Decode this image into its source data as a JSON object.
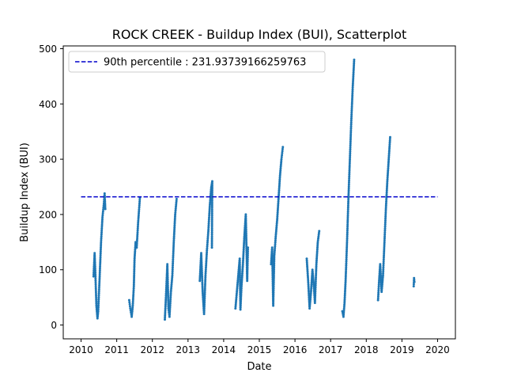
{
  "chart_data": {
    "type": "scatter",
    "title": "ROCK CREEK - Buildup Index (BUI), Scatterplot",
    "xlabel": "Date",
    "ylabel": "Buildup Index (BUI)",
    "xlim": [
      2009.5,
      2020.5
    ],
    "ylim": [
      -25,
      505
    ],
    "x_ticks": [
      "2010",
      "2011",
      "2012",
      "2013",
      "2014",
      "2015",
      "2016",
      "2017",
      "2018",
      "2019",
      "2020"
    ],
    "y_ticks": [
      0,
      100,
      200,
      300,
      400,
      500
    ],
    "grid": false,
    "legend_position": "upper left",
    "point_color": "#1f77b4",
    "reference_line": {
      "label": "90th percentile : 231.93739166259763",
      "value": 231.93739166259763,
      "x_range": [
        2010,
        2020
      ],
      "color": "#0000cc",
      "style": "dashed"
    },
    "season_segments": [
      {
        "year": 2010,
        "points": [
          [
            2010.35,
            88
          ],
          [
            2010.38,
            130
          ],
          [
            2010.4,
            95
          ],
          [
            2010.43,
            35
          ],
          [
            2010.46,
            12
          ],
          [
            2010.48,
            25
          ],
          [
            2010.52,
            85
          ],
          [
            2010.56,
            150
          ],
          [
            2010.6,
            195
          ],
          [
            2010.64,
            220
          ],
          [
            2010.66,
            238
          ],
          [
            2010.68,
            210
          ]
        ]
      },
      {
        "year": 2011,
        "points": [
          [
            2011.35,
            45
          ],
          [
            2011.38,
            30
          ],
          [
            2011.42,
            15
          ],
          [
            2011.45,
            35
          ],
          [
            2011.48,
            70
          ],
          [
            2011.5,
            120
          ],
          [
            2011.53,
            150
          ],
          [
            2011.56,
            140
          ],
          [
            2011.6,
            185
          ],
          [
            2011.65,
            230
          ]
        ]
      },
      {
        "year": 2012,
        "points": [
          [
            2012.35,
            10
          ],
          [
            2012.38,
            50
          ],
          [
            2012.42,
            110
          ],
          [
            2012.45,
            30
          ],
          [
            2012.48,
            15
          ],
          [
            2012.52,
            60
          ],
          [
            2012.56,
            90
          ],
          [
            2012.6,
            150
          ],
          [
            2012.64,
            200
          ],
          [
            2012.68,
            228
          ]
        ]
      },
      {
        "year": 2013,
        "points": [
          [
            2013.33,
            80
          ],
          [
            2013.37,
            130
          ],
          [
            2013.41,
            60
          ],
          [
            2013.45,
            20
          ],
          [
            2013.49,
            90
          ],
          [
            2013.53,
            135
          ],
          [
            2013.57,
            170
          ],
          [
            2013.61,
            215
          ],
          [
            2013.65,
            248
          ],
          [
            2013.68,
            260
          ],
          [
            2013.67,
            140
          ]
        ]
      },
      {
        "year": 2014,
        "points": [
          [
            2014.33,
            30
          ],
          [
            2014.37,
            60
          ],
          [
            2014.41,
            90
          ],
          [
            2014.45,
            120
          ],
          [
            2014.47,
            28
          ],
          [
            2014.5,
            70
          ],
          [
            2014.54,
            110
          ],
          [
            2014.58,
            160
          ],
          [
            2014.62,
            200
          ],
          [
            2014.66,
            80
          ],
          [
            2014.68,
            140
          ]
        ]
      },
      {
        "year": 2015,
        "points": [
          [
            2015.33,
            110
          ],
          [
            2015.36,
            140
          ],
          [
            2015.39,
            35
          ],
          [
            2015.42,
            125
          ],
          [
            2015.46,
            160
          ],
          [
            2015.5,
            190
          ],
          [
            2015.54,
            230
          ],
          [
            2015.58,
            270
          ],
          [
            2015.62,
            300
          ],
          [
            2015.66,
            322
          ]
        ]
      },
      {
        "year": 2016,
        "points": [
          [
            2016.33,
            120
          ],
          [
            2016.37,
            80
          ],
          [
            2016.41,
            30
          ],
          [
            2016.45,
            60
          ],
          [
            2016.49,
            100
          ],
          [
            2016.53,
            70
          ],
          [
            2016.56,
            40
          ],
          [
            2016.6,
            110
          ],
          [
            2016.64,
            150
          ],
          [
            2016.68,
            170
          ]
        ]
      },
      {
        "year": 2017,
        "points": [
          [
            2017.33,
            25
          ],
          [
            2017.36,
            15
          ],
          [
            2017.39,
            40
          ],
          [
            2017.42,
            80
          ],
          [
            2017.46,
            150
          ],
          [
            2017.5,
            230
          ],
          [
            2017.54,
            300
          ],
          [
            2017.58,
            370
          ],
          [
            2017.62,
            430
          ],
          [
            2017.66,
            480
          ]
        ]
      },
      {
        "year": 2018,
        "points": [
          [
            2018.33,
            45
          ],
          [
            2018.36,
            80
          ],
          [
            2018.39,
            110
          ],
          [
            2018.43,
            60
          ],
          [
            2018.47,
            90
          ],
          [
            2018.51,
            150
          ],
          [
            2018.55,
            210
          ],
          [
            2018.59,
            260
          ],
          [
            2018.63,
            300
          ],
          [
            2018.67,
            340
          ]
        ]
      },
      {
        "year": 2019,
        "points": [
          [
            2019.33,
            70
          ],
          [
            2019.34,
            85
          ],
          [
            2019.35,
            78
          ]
        ]
      }
    ]
  }
}
